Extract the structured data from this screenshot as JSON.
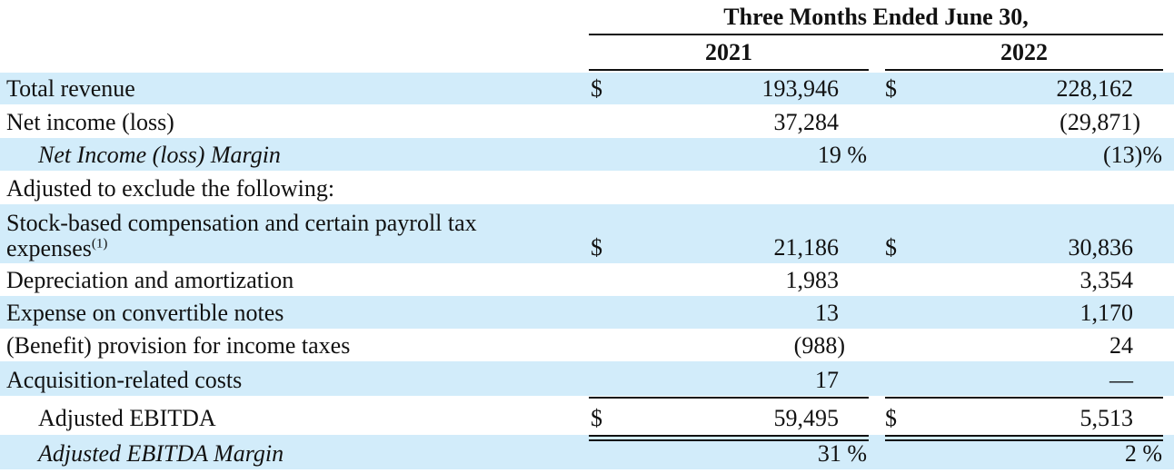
{
  "table": {
    "period_header": "Three Months Ended June 30,",
    "years": [
      "2021",
      "2022"
    ],
    "rows": [
      {
        "label": "Total revenue",
        "cur1": "$",
        "v2021": "193,946",
        "cur2": "$",
        "v2022": "228,162"
      },
      {
        "label": "Net income (loss)",
        "cur1": "",
        "v2021": "37,284",
        "cur2": "",
        "v2022": "(29,871)"
      },
      {
        "label": "Net Income (loss) Margin",
        "cur1": "",
        "v2021": "19 %",
        "cur2": "",
        "v2022": "(13)%"
      },
      {
        "label": "Adjusted to exclude the following:",
        "cur1": "",
        "v2021": "",
        "cur2": "",
        "v2022": ""
      },
      {
        "label_line1": "Stock-based compensation and certain payroll tax",
        "label_line2": "expenses",
        "footnote": "(1)",
        "cur1": "$",
        "v2021": "21,186",
        "cur2": "$",
        "v2022": "30,836"
      },
      {
        "label": "Depreciation and amortization",
        "cur1": "",
        "v2021": "1,983",
        "cur2": "",
        "v2022": "3,354"
      },
      {
        "label": "Expense on convertible notes",
        "cur1": "",
        "v2021": "13",
        "cur2": "",
        "v2022": "1,170"
      },
      {
        "label": "(Benefit) provision for income taxes",
        "cur1": "",
        "v2021": "(988)",
        "cur2": "",
        "v2022": "24"
      },
      {
        "label": "Acquisition-related costs",
        "cur1": "",
        "v2021": "17",
        "cur2": "",
        "v2022": "—"
      },
      {
        "label": "Adjusted EBITDA",
        "cur1": "$",
        "v2021": "59,495",
        "cur2": "$",
        "v2022": "5,513"
      },
      {
        "label": "Adjusted EBITDA Margin",
        "cur1": "",
        "v2021": "31 %",
        "cur2": "",
        "v2022": "2 %"
      }
    ]
  },
  "colors": {
    "row_shade": "#d2ecfa",
    "text": "#111111"
  }
}
